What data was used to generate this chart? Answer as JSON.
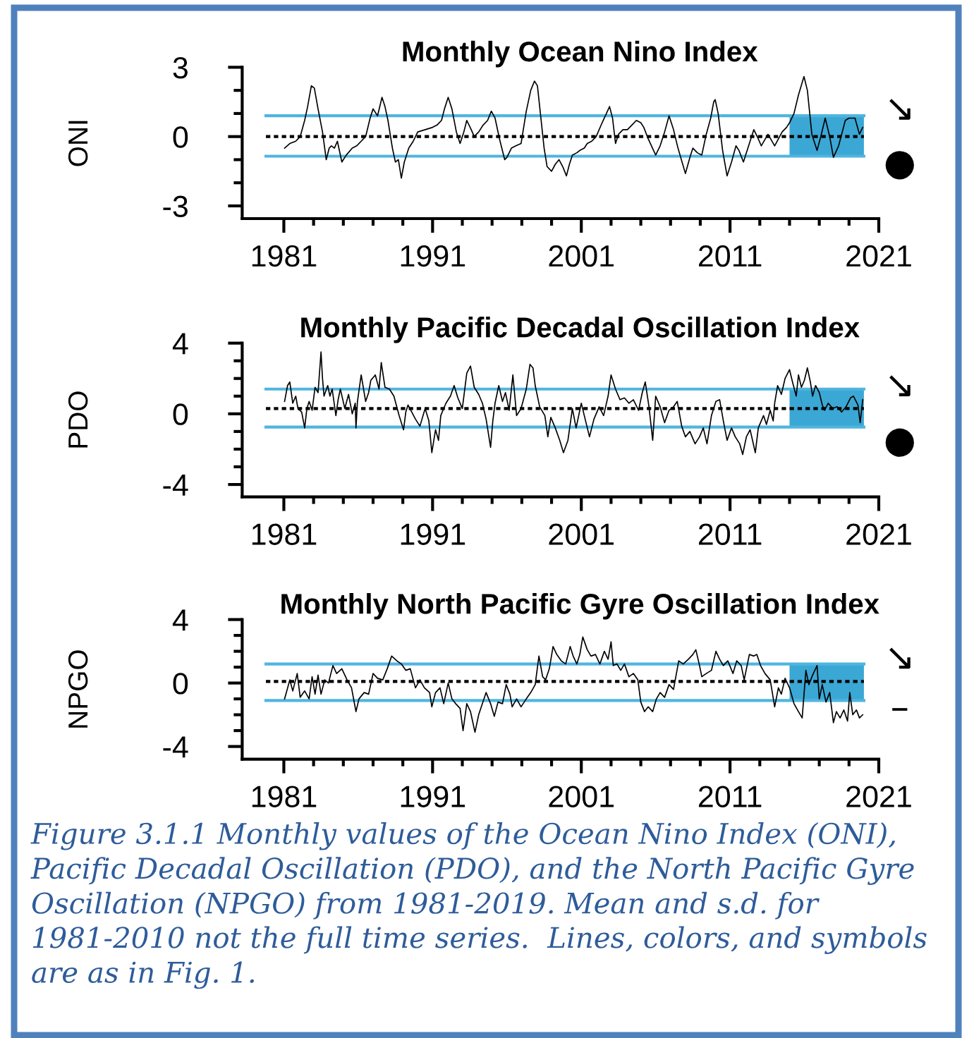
{
  "chart_data": [
    {
      "type": "line",
      "title": "Monthly Ocean Nino Index",
      "ylabel": "ONI",
      "color": "#000000",
      "x": [
        1981.05,
        1981.4,
        1981.8,
        1982.1,
        1982.4,
        1982.6,
        1982.85,
        1983.05,
        1983.3,
        1983.6,
        1983.85,
        1984.05,
        1984.2,
        1984.4,
        1984.6,
        1984.9,
        1985.2,
        1985.6,
        1985.9,
        1986.2,
        1986.5,
        1986.8,
        1987.0,
        1987.3,
        1987.6,
        1987.8,
        1988.0,
        1988.3,
        1988.5,
        1988.7,
        1988.9,
        1989.1,
        1989.4,
        1989.7,
        1990.0,
        1990.5,
        1991.0,
        1991.3,
        1991.6,
        1991.8,
        1992.05,
        1992.3,
        1992.6,
        1992.85,
        1993.1,
        1993.3,
        1993.6,
        1993.8,
        1994.1,
        1994.4,
        1994.7,
        1994.95,
        1995.2,
        1995.5,
        1995.85,
        1996.0,
        1996.3,
        1996.6,
        1996.95,
        1997.3,
        1997.6,
        1997.85,
        1998.05,
        1998.2,
        1998.5,
        1998.7,
        1999.0,
        1999.25,
        1999.5,
        1999.75,
        2000.0,
        2000.2,
        2000.4,
        2000.7,
        2000.9,
        2001.2,
        2001.4,
        2001.7,
        2002.0,
        2002.4,
        2002.9,
        2003.1,
        2003.3,
        2003.5,
        2003.8,
        2004.1,
        2004.4,
        2004.7,
        2005.0,
        2005.2,
        2005.5,
        2006.0,
        2006.3,
        2006.6,
        2006.9,
        2007.2,
        2007.5,
        2008.0,
        2008.3,
        2008.5,
        2008.8,
        2009.1,
        2009.4,
        2009.7,
        2009.9,
        2010.0,
        2010.2,
        2010.5,
        2010.8,
        2011.1,
        2011.4,
        2011.6,
        2011.9,
        2012.2,
        2012.6,
        2012.9,
        2013.1,
        2013.55,
        2014.0,
        2014.5,
        2014.8,
        2015.0,
        2015.3,
        2015.6,
        2015.97,
        2016.2,
        2016.5,
        2016.85,
        2017.1,
        2017.4,
        2017.7,
        2017.95,
        2018.3,
        2018.75,
        2019.0,
        2019.4,
        2019.7,
        2019.92
      ],
      "values": [
        -0.5,
        -0.3,
        -0.2,
        0.0,
        0.7,
        1.3,
        2.2,
        2.1,
        1.2,
        0.2,
        -1.0,
        -0.5,
        -0.4,
        -0.5,
        -0.2,
        -1.1,
        -0.8,
        -0.5,
        -0.4,
        -0.2,
        0.0,
        0.8,
        1.2,
        0.9,
        1.7,
        1.3,
        0.7,
        -0.5,
        -1.1,
        -1.0,
        -1.8,
        -1.1,
        -0.5,
        -0.2,
        0.2,
        0.3,
        0.4,
        0.5,
        0.7,
        1.2,
        1.7,
        1.2,
        0.2,
        -0.3,
        0.2,
        0.7,
        0.3,
        0.0,
        0.2,
        0.5,
        0.7,
        1.1,
        0.8,
        -0.1,
        -1.0,
        -0.9,
        -0.5,
        -0.4,
        -0.3,
        1.1,
        2.0,
        2.4,
        2.2,
        1.3,
        -0.5,
        -1.3,
        -1.5,
        -1.2,
        -1.0,
        -1.3,
        -1.7,
        -1.2,
        -0.8,
        -0.7,
        -0.6,
        -0.5,
        -0.3,
        -0.2,
        0.0,
        0.6,
        1.3,
        0.8,
        -0.3,
        0.1,
        0.3,
        0.3,
        0.5,
        0.7,
        0.6,
        0.4,
        -0.1,
        -0.8,
        -0.4,
        0.2,
        0.9,
        0.3,
        -0.5,
        -1.6,
        -0.9,
        -0.5,
        -0.7,
        -0.8,
        0.1,
        0.8,
        1.5,
        1.6,
        1.0,
        -0.6,
        -1.7,
        -1.1,
        -0.4,
        -0.6,
        -1.1,
        -0.5,
        0.3,
        -0.1,
        -0.4,
        0.1,
        -0.4,
        0.2,
        0.4,
        0.6,
        1.0,
        1.8,
        2.6,
        2.0,
        0.1,
        -0.6,
        0.0,
        0.8,
        0.0,
        -0.9,
        -0.4,
        0.7,
        0.8,
        0.8,
        0.1,
        0.4
      ],
      "xlim": [
        1978.2,
        2021
      ],
      "xticks": [
        1981,
        {
          "value": 1983,
          "label": null
        },
        {
          "value": 1985,
          "label": null
        },
        {
          "value": 1987,
          "label": null
        },
        {
          "value": 1989,
          "label": null
        },
        1991,
        {
          "value": 1993,
          "label": null
        },
        {
          "value": 1995,
          "label": null
        },
        {
          "value": 1997,
          "label": null
        },
        {
          "value": 1999,
          "label": null
        },
        2001,
        {
          "value": 2003,
          "label": null
        },
        {
          "value": 2005,
          "label": null
        },
        {
          "value": 2007,
          "label": null
        },
        {
          "value": 2009,
          "label": null
        },
        2011,
        {
          "value": 2013,
          "label": null
        },
        {
          "value": 2015,
          "label": null
        },
        {
          "value": 2017,
          "label": null
        },
        {
          "value": 2019,
          "label": null
        },
        2021
      ],
      "ylim": [
        -3.55,
        3
      ],
      "yticks": [
        3,
        {
          "value": 2,
          "label": null
        },
        {
          "value": 1,
          "label": null
        },
        0,
        {
          "value": -1,
          "label": null
        },
        {
          "value": -2,
          "label": null
        },
        -3
      ],
      "ref_lines": [
        {
          "axis": "y",
          "value": 0.9,
          "color": "#4fb5df",
          "line_style": "solid"
        },
        {
          "axis": "y",
          "value": 0,
          "color": "#000000",
          "line_style": "dotted"
        },
        {
          "axis": "y",
          "value": -0.85,
          "color": "#4fb5df",
          "line_style": "solid"
        }
      ],
      "bands": [
        {
          "axis": "x",
          "from": 2015,
          "to": 2020,
          "color": "#3ba7d4"
        }
      ],
      "annotations": [
        "↘",
        "●"
      ]
    },
    {
      "type": "line",
      "title": "Monthly Pacific Decadal Oscillation Index",
      "ylabel": "PDO",
      "color": "#000000",
      "x": [
        1981.05,
        1981.25,
        1981.4,
        1981.6,
        1981.8,
        1981.95,
        1982.2,
        1982.4,
        1982.55,
        1982.7,
        1982.9,
        1983.1,
        1983.3,
        1983.5,
        1983.6,
        1983.7,
        1983.95,
        1984.1,
        1984.25,
        1984.5,
        1984.65,
        1984.8,
        1985.1,
        1985.35,
        1985.6,
        1985.8,
        1985.85,
        1985.95,
        1986.2,
        1986.5,
        1986.7,
        1986.85,
        1987.15,
        1987.4,
        1987.55,
        1987.8,
        1988.1,
        1988.4,
        1988.75,
        1989.05,
        1989.2,
        1989.35,
        1989.6,
        1989.85,
        1990.15,
        1990.5,
        1990.75,
        1990.95,
        1991.2,
        1991.4,
        1991.55,
        1991.9,
        1992.2,
        1992.45,
        1992.7,
        1993.0,
        1993.3,
        1993.55,
        1993.8,
        1994.1,
        1994.35,
        1994.6,
        1994.9,
        1995.05,
        1995.2,
        1995.45,
        1995.7,
        1995.9,
        1996.15,
        1996.4,
        1996.65,
        1996.95,
        1997.3,
        1997.55,
        1997.75,
        1997.9,
        1998.2,
        1998.55,
        1998.75,
        1998.95,
        1999.25,
        1999.55,
        1999.8,
        2000.1,
        2000.4,
        2000.65,
        2001.0,
        2001.2,
        2001.55,
        2001.85,
        2002.2,
        2002.5,
        2002.8,
        2003.0,
        2003.3,
        2003.6,
        2003.9,
        2004.2,
        2004.5,
        2004.85,
        2005.1,
        2005.3,
        2005.55,
        2005.8,
        2006.0,
        2006.3,
        2006.6,
        2006.9,
        2007.2,
        2007.45,
        2007.75,
        2008.0,
        2008.3,
        2008.65,
        2008.95,
        2009.2,
        2009.45,
        2009.75,
        2010.05,
        2010.3,
        2010.55,
        2010.8,
        2011.1,
        2011.35,
        2011.65,
        2011.85,
        2012.1,
        2012.35,
        2012.7,
        2012.9,
        2013.25,
        2013.45,
        2013.7,
        2013.9,
        2014.0,
        2014.2,
        2014.45,
        2014.7,
        2015.0,
        2015.2,
        2015.45,
        2015.6,
        2015.8,
        2016.0,
        2016.2,
        2016.4,
        2016.55,
        2016.75,
        2017.0,
        2017.2,
        2017.35,
        2017.6,
        2017.9,
        2018.2,
        2018.5,
        2018.8,
        2019.1,
        2019.3,
        2019.6,
        2019.75,
        2019.92
      ],
      "values": [
        0.7,
        1.6,
        1.8,
        0.6,
        1.0,
        0.3,
        0.1,
        -0.8,
        0.3,
        0.7,
        0.2,
        1.5,
        1.2,
        3.5,
        2.0,
        1.0,
        1.6,
        1.0,
        1.4,
        -0.1,
        0.8,
        1.4,
        0.3,
        1.1,
        0.0,
        0.6,
        -0.8,
        0.7,
        2.2,
        0.7,
        1.2,
        1.9,
        2.2,
        1.4,
        2.9,
        1.5,
        1.4,
        1.0,
        -0.1,
        -0.9,
        0.1,
        0.5,
        0.1,
        -0.3,
        -0.7,
        0.3,
        -0.4,
        -2.2,
        -0.9,
        -1.5,
        -0.1,
        0.6,
        1.0,
        1.6,
        0.9,
        0.3,
        2.3,
        2.7,
        1.5,
        1.1,
        0.6,
        -0.3,
        -1.9,
        -0.4,
        0.6,
        1.6,
        0.7,
        1.2,
        0.2,
        2.2,
        -0.1,
        0.3,
        1.4,
        2.8,
        2.6,
        1.6,
        0.4,
        -0.1,
        -1.3,
        -0.2,
        -0.8,
        -1.5,
        -2.2,
        -1.5,
        0.3,
        -0.8,
        0.6,
        -0.1,
        -1.3,
        -0.3,
        0.4,
        -0.1,
        1.0,
        2.2,
        1.4,
        0.8,
        0.9,
        0.6,
        0.8,
        0.2,
        1.2,
        1.8,
        0.4,
        -1.5,
        1.0,
        0.4,
        -0.5,
        0.2,
        0.4,
        0.7,
        -0.7,
        -1.3,
        -1.0,
        -1.7,
        -1.3,
        -0.8,
        -1.7,
        -0.1,
        0.7,
        0.8,
        -0.4,
        -1.5,
        -0.8,
        -1.3,
        -1.7,
        -2.3,
        -1.3,
        -0.9,
        -2.2,
        -0.8,
        -0.1,
        -0.6,
        0.2,
        -0.4,
        0.6,
        1.6,
        1.1,
        2.0,
        2.5,
        1.8,
        1.0,
        2.2,
        1.5,
        1.9,
        2.6,
        1.8,
        1.0,
        1.6,
        1.2,
        0.5,
        0.2,
        0.6,
        0.3,
        0.4,
        0.1,
        0.4,
        0.9,
        1.0,
        0.5,
        -0.5,
        0.8
      ],
      "xlim": [
        1978.2,
        2021
      ],
      "xticks": [
        1981,
        {
          "value": 1983,
          "label": null
        },
        {
          "value": 1985,
          "label": null
        },
        {
          "value": 1987,
          "label": null
        },
        {
          "value": 1989,
          "label": null
        },
        1991,
        {
          "value": 1993,
          "label": null
        },
        {
          "value": 1995,
          "label": null
        },
        {
          "value": 1997,
          "label": null
        },
        {
          "value": 1999,
          "label": null
        },
        2001,
        {
          "value": 2003,
          "label": null
        },
        {
          "value": 2005,
          "label": null
        },
        {
          "value": 2007,
          "label": null
        },
        {
          "value": 2009,
          "label": null
        },
        2011,
        {
          "value": 2013,
          "label": null
        },
        {
          "value": 2015,
          "label": null
        },
        {
          "value": 2017,
          "label": null
        },
        {
          "value": 2019,
          "label": null
        },
        2021
      ],
      "ylim": [
        -4.7,
        4
      ],
      "yticks": [
        4,
        {
          "value": 3,
          "label": null
        },
        {
          "value": 2,
          "label": null
        },
        {
          "value": 1,
          "label": null
        },
        0,
        {
          "value": -1,
          "label": null
        },
        {
          "value": -2,
          "label": null
        },
        {
          "value": -3,
          "label": null
        },
        -4
      ],
      "ref_lines": [
        {
          "axis": "y",
          "value": 1.4,
          "color": "#4fb5df",
          "line_style": "solid"
        },
        {
          "axis": "y",
          "value": 0.3,
          "color": "#000000",
          "line_style": "dotted"
        },
        {
          "axis": "y",
          "value": -0.75,
          "color": "#4fb5df",
          "line_style": "solid"
        }
      ],
      "bands": [
        {
          "axis": "x",
          "from": 2015,
          "to": 2020,
          "color": "#3ba7d4"
        }
      ],
      "annotations": [
        "↘",
        "●"
      ]
    },
    {
      "type": "line",
      "title": "Monthly North Pacific Gyre Oscillation Index",
      "ylabel": "NPGO",
      "color": "#000000",
      "x": [
        1981.05,
        1981.2,
        1981.4,
        1981.6,
        1981.9,
        1982.1,
        1982.4,
        1982.7,
        1982.9,
        1983.1,
        1983.3,
        1983.5,
        1983.75,
        1984.0,
        1984.3,
        1984.55,
        1984.9,
        1985.25,
        1985.55,
        1985.85,
        1986.05,
        1986.4,
        1986.7,
        1987.0,
        1987.3,
        1987.65,
        1987.95,
        1988.25,
        1988.6,
        1988.9,
        1989.2,
        1989.5,
        1989.85,
        1990.15,
        1990.45,
        1990.8,
        1990.95,
        1991.2,
        1991.5,
        1991.75,
        1992.05,
        1992.3,
        1992.55,
        1992.85,
        1993.05,
        1993.3,
        1993.55,
        1993.85,
        1994.1,
        1994.35,
        1994.6,
        1994.9,
        1995.15,
        1995.4,
        1995.7,
        1995.95,
        1996.2,
        1996.35,
        1996.65,
        1996.95,
        1997.3,
        1997.6,
        1997.9,
        1998.15,
        1998.4,
        1998.6,
        1998.85,
        1999.1,
        1999.35,
        1999.65,
        1999.95,
        2000.25,
        2000.45,
        2000.7,
        2000.9,
        2001.1,
        2001.4,
        2001.65,
        2001.95,
        2002.25,
        2002.55,
        2002.8,
        2003.0,
        2003.15,
        2003.4,
        2003.65,
        2003.9,
        2004.2,
        2004.5,
        2004.8,
        2005.0,
        2005.25,
        2005.5,
        2005.8,
        2006.05,
        2006.3,
        2006.6,
        2006.9,
        2007.2,
        2007.55,
        2007.85,
        2008.2,
        2008.5,
        2008.7,
        2008.95,
        2009.1,
        2009.4,
        2009.75,
        2010.05,
        2010.3,
        2010.55,
        2010.85,
        2011.2,
        2011.45,
        2011.75,
        2011.95,
        2012.3,
        2012.6,
        2012.8,
        2013.05,
        2013.35,
        2013.7,
        2014.0,
        2014.25,
        2014.45,
        2014.7,
        2015.0,
        2015.3,
        2015.6,
        2015.85,
        2016.1,
        2016.3,
        2016.55,
        2016.85,
        2017.0,
        2017.2,
        2017.45,
        2017.7,
        2017.95,
        2018.15,
        2018.4,
        2018.65,
        2018.9,
        2019.05,
        2019.25,
        2019.5,
        2019.7,
        2019.92
      ],
      "values": [
        -1.0,
        -0.5,
        0.2,
        -0.5,
        0.6,
        -0.9,
        -0.5,
        -1.0,
        0.4,
        -0.7,
        0.5,
        -0.7,
        0.2,
        0.0,
        1.1,
        0.6,
        0.9,
        0.2,
        -0.3,
        -1.8,
        -1.0,
        -0.6,
        -0.7,
        0.6,
        0.3,
        0.2,
        0.9,
        1.7,
        1.4,
        1.2,
        0.8,
        0.9,
        -0.3,
        0.2,
        -0.3,
        -0.6,
        -1.5,
        -0.6,
        -0.3,
        -1.3,
        0.0,
        -1.0,
        -1.3,
        -1.6,
        -3.0,
        -1.3,
        -1.8,
        -3.1,
        -2.0,
        -1.3,
        -0.6,
        -1.3,
        -2.1,
        -1.2,
        -1.3,
        -0.1,
        -0.7,
        -1.5,
        -1.0,
        -1.5,
        -1.0,
        -0.6,
        -0.1,
        1.7,
        0.4,
        0.2,
        0.9,
        2.3,
        1.8,
        1.4,
        1.2,
        2.3,
        1.7,
        1.2,
        1.8,
        2.9,
        2.1,
        1.7,
        1.8,
        1.2,
        2.0,
        1.5,
        2.6,
        1.1,
        1.2,
        0.8,
        1.2,
        0.4,
        0.6,
        0.2,
        -1.2,
        -1.8,
        -1.5,
        -1.8,
        -1.0,
        -0.6,
        -0.9,
        -0.1,
        -0.4,
        1.4,
        1.2,
        1.5,
        1.8,
        2.1,
        1.1,
        0.4,
        0.6,
        0.8,
        2.0,
        1.5,
        1.1,
        1.4,
        0.6,
        1.4,
        1.1,
        0.2,
        1.8,
        1.7,
        1.8,
        1.1,
        0.6,
        0.2,
        -1.5,
        -0.3,
        -0.7,
        0.3,
        -0.3,
        -1.3,
        -1.8,
        -2.2,
        0.8,
        -0.1,
        0.5,
        1.1,
        -1.0,
        -0.1,
        -1.2,
        -0.6,
        -2.5,
        -1.8,
        -2.2,
        -1.7,
        -2.4,
        -0.6,
        -2.0,
        -1.7,
        -2.2,
        -2.0
      ],
      "xlim": [
        1978.2,
        2021
      ],
      "xticks": [
        1981,
        {
          "value": 1983,
          "label": null
        },
        {
          "value": 1985,
          "label": null
        },
        {
          "value": 1987,
          "label": null
        },
        {
          "value": 1989,
          "label": null
        },
        1991,
        {
          "value": 1993,
          "label": null
        },
        {
          "value": 1995,
          "label": null
        },
        {
          "value": 1997,
          "label": null
        },
        {
          "value": 1999,
          "label": null
        },
        2001,
        {
          "value": 2003,
          "label": null
        },
        {
          "value": 2005,
          "label": null
        },
        {
          "value": 2007,
          "label": null
        },
        {
          "value": 2009,
          "label": null
        },
        2011,
        {
          "value": 2013,
          "label": null
        },
        {
          "value": 2015,
          "label": null
        },
        {
          "value": 2017,
          "label": null
        },
        {
          "value": 2019,
          "label": null
        },
        2021
      ],
      "ylim": [
        -4.8,
        4
      ],
      "yticks": [
        4,
        {
          "value": 3,
          "label": null
        },
        {
          "value": 2,
          "label": null
        },
        {
          "value": 1,
          "label": null
        },
        0,
        {
          "value": -1,
          "label": null
        },
        {
          "value": -2,
          "label": null
        },
        {
          "value": -3,
          "label": null
        },
        -4
      ],
      "ref_lines": [
        {
          "axis": "y",
          "value": 1.2,
          "color": "#4fb5df",
          "line_style": "solid"
        },
        {
          "axis": "y",
          "value": 0.1,
          "color": "#000000",
          "line_style": "dotted"
        },
        {
          "axis": "y",
          "value": -1.1,
          "color": "#4fb5df",
          "line_style": "solid"
        }
      ],
      "bands": [
        {
          "axis": "x",
          "from": 2015,
          "to": 2020,
          "color": "#3ba7d4"
        }
      ],
      "annotations": [
        "↘",
        "–",
        "Figure 3.1.1 Monthly values of the Ocean Nino Index (ONI), Pacific Decadal Oscillation (PDO), and the North Pacific Gyre Oscillation (NPGO) from 1981-2019. Mean and s.d. for 1981-2010 not the full time series.  Lines, colors, and symbols are as in Fig. 1."
      ]
    }
  ]
}
